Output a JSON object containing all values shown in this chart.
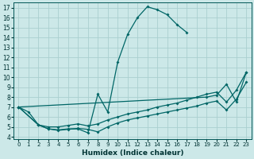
{
  "xlabel": "Humidex (Indice chaleur)",
  "xlim": [
    -0.5,
    23.5
  ],
  "ylim": [
    3.8,
    17.5
  ],
  "xticks": [
    0,
    1,
    2,
    3,
    4,
    5,
    6,
    7,
    8,
    9,
    10,
    11,
    12,
    13,
    14,
    15,
    16,
    17,
    18,
    19,
    20,
    21,
    22,
    23
  ],
  "yticks": [
    4,
    5,
    6,
    7,
    8,
    9,
    10,
    11,
    12,
    13,
    14,
    15,
    16,
    17
  ],
  "background_color": "#cce8e8",
  "grid_color": "#aad0d0",
  "line_color": "#006666",
  "line1_x": [
    0,
    1,
    2,
    3,
    4,
    5,
    6,
    7,
    8,
    9,
    10,
    11,
    12,
    13,
    14,
    15,
    16,
    17
  ],
  "line1_y": [
    7.0,
    6.5,
    5.2,
    4.8,
    4.7,
    4.8,
    4.8,
    4.4,
    8.3,
    6.5,
    11.5,
    14.3,
    16.0,
    17.1,
    16.8,
    16.3,
    15.3,
    14.5
  ],
  "line2_x": [
    0,
    2,
    3,
    4,
    5,
    6,
    7,
    8,
    9,
    10,
    11,
    12,
    13,
    14,
    15,
    16,
    17,
    18,
    19,
    20,
    21,
    22,
    23
  ],
  "line2_y": [
    7.0,
    5.2,
    5.0,
    5.0,
    5.15,
    5.3,
    5.1,
    5.3,
    5.7,
    6.0,
    6.3,
    6.5,
    6.7,
    7.0,
    7.2,
    7.4,
    7.7,
    8.0,
    8.3,
    8.5,
    7.5,
    8.7,
    10.5
  ],
  "line3_x": [
    0,
    2,
    3,
    4,
    5,
    6,
    7,
    8,
    9,
    10,
    11,
    12,
    13,
    14,
    15,
    16,
    17,
    18,
    19,
    20,
    21,
    22,
    23
  ],
  "line3_y": [
    7.0,
    5.2,
    4.8,
    4.65,
    4.75,
    4.85,
    4.75,
    4.5,
    5.0,
    5.4,
    5.7,
    5.9,
    6.1,
    6.3,
    6.5,
    6.7,
    6.9,
    7.1,
    7.4,
    7.6,
    6.7,
    7.8,
    9.5
  ],
  "line4_x": [
    0,
    19,
    20,
    21,
    22,
    23
  ],
  "line4_y": [
    7.0,
    8.0,
    8.2,
    9.3,
    7.5,
    10.5
  ]
}
